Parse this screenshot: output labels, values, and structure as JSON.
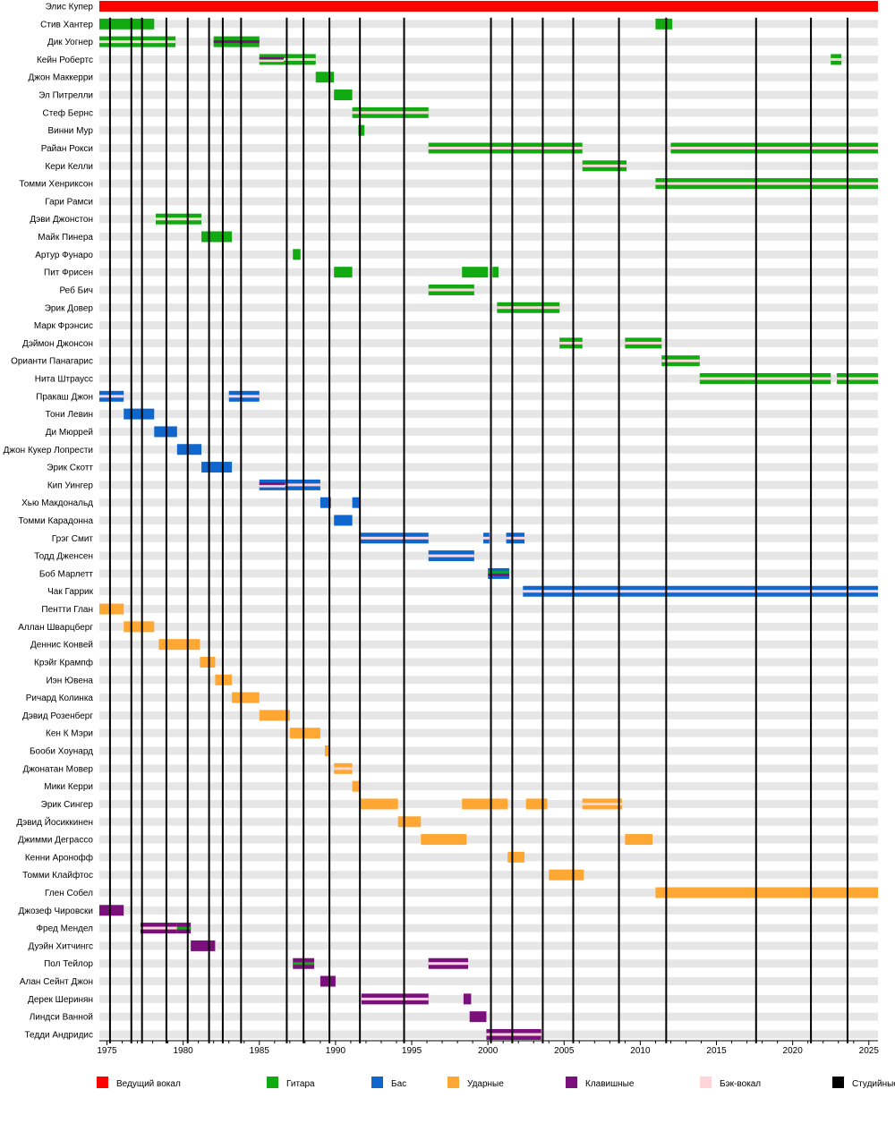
{
  "chart_data": {
    "type": "timeline",
    "title": "",
    "x_range": [
      1974.5,
      2025.6
    ],
    "x_ticks": [
      1975,
      1980,
      1985,
      1990,
      1995,
      2000,
      2005,
      2010,
      2015,
      2020,
      2025
    ],
    "colors": {
      "vocals": "#ff0000",
      "guitar": "#11aa11",
      "bass": "#0f66cc",
      "drums": "#ffa733",
      "keys": "#7b0f7b",
      "backing": "#ffd5dc",
      "studio": "#000000",
      "row_band": "#e6e6e6"
    },
    "albums": [
      1975.2,
      1976.6,
      1977.3,
      1978.9,
      1980.3,
      1981.7,
      1982.6,
      1983.8,
      1986.8,
      1987.9,
      1989.6,
      1991.6,
      1994.5,
      2000.2,
      2001.6,
      2003.6,
      2005.6,
      2008.6,
      2011.7,
      2017.6,
      2021.2,
      2023.6
    ],
    "members": [
      {
        "name": "Элис Купер",
        "spans": [
          {
            "s": 1974.5,
            "e": 2025.6,
            "r": [
              "vocals"
            ]
          }
        ]
      },
      {
        "name": "Стив Хантер",
        "spans": [
          {
            "s": 1974.5,
            "e": 1978.1,
            "r": [
              "guitar"
            ]
          },
          {
            "s": 2011.0,
            "e": 2012.1,
            "r": [
              "guitar"
            ]
          }
        ]
      },
      {
        "name": "Дик Уогнер",
        "spans": [
          {
            "s": 1974.5,
            "e": 1979.5,
            "r": [
              "guitar",
              "backing"
            ]
          },
          {
            "s": 1982.0,
            "e": 1985.0,
            "r": [
              "guitar",
              "keys"
            ]
          }
        ]
      },
      {
        "name": "Кейн Робертс",
        "spans": [
          {
            "s": 1985.0,
            "e": 1986.6,
            "r": [
              "guitar",
              "keys",
              "backing"
            ]
          },
          {
            "s": 1986.6,
            "e": 1988.7,
            "r": [
              "guitar",
              "backing"
            ]
          },
          {
            "s": 2022.5,
            "e": 2023.2,
            "r": [
              "guitar",
              "backing"
            ]
          }
        ]
      },
      {
        "name": "Джон Маккерри",
        "spans": [
          {
            "s": 1988.7,
            "e": 1989.9,
            "r": [
              "guitar"
            ]
          }
        ]
      },
      {
        "name": "Эл Питрелли",
        "spans": [
          {
            "s": 1989.9,
            "e": 1991.1,
            "r": [
              "guitar"
            ]
          }
        ]
      },
      {
        "name": "Стеф Бернс",
        "spans": [
          {
            "s": 1991.1,
            "e": 1996.1,
            "r": [
              "guitar",
              "backing"
            ]
          }
        ]
      },
      {
        "name": "Винни Мур",
        "spans": [
          {
            "s": 1991.5,
            "e": 1991.9,
            "r": [
              "guitar"
            ]
          }
        ]
      },
      {
        "name": "Райан Рокси",
        "spans": [
          {
            "s": 1996.1,
            "e": 2006.2,
            "r": [
              "guitar",
              "backing"
            ]
          },
          {
            "s": 2012.0,
            "e": 2025.6,
            "r": [
              "guitar",
              "backing"
            ]
          }
        ]
      },
      {
        "name": "Кери Келли",
        "spans": [
          {
            "s": 2006.2,
            "e": 2009.1,
            "r": [
              "guitar",
              "backing"
            ]
          }
        ]
      },
      {
        "name": "Томми Хенриксон",
        "spans": [
          {
            "s": 2011.0,
            "e": 2025.6,
            "r": [
              "guitar",
              "backing"
            ]
          }
        ]
      },
      {
        "name": "Гари Рамси",
        "spans": []
      },
      {
        "name": "Дэви Джонстон",
        "spans": [
          {
            "s": 1978.2,
            "e": 1981.2,
            "r": [
              "guitar",
              "backing"
            ]
          }
        ]
      },
      {
        "name": "Майк Пинера",
        "spans": [
          {
            "s": 1981.2,
            "e": 1983.2,
            "r": [
              "guitar"
            ]
          }
        ]
      },
      {
        "name": "Артур Фунаро",
        "spans": [
          {
            "s": 1987.2,
            "e": 1987.7,
            "r": [
              "guitar"
            ]
          }
        ]
      },
      {
        "name": "Пит Фрисен",
        "spans": [
          {
            "s": 1989.9,
            "e": 1991.1,
            "r": [
              "guitar"
            ]
          },
          {
            "s": 1998.3,
            "e": 2000.0,
            "r": [
              "guitar"
            ]
          },
          {
            "s": 2000.3,
            "e": 2000.7,
            "r": [
              "guitar"
            ]
          }
        ]
      },
      {
        "name": "Реб Бич",
        "spans": [
          {
            "s": 1996.1,
            "e": 1999.1,
            "r": [
              "guitar",
              "backing"
            ]
          }
        ]
      },
      {
        "name": "Эрик Довер",
        "spans": [
          {
            "s": 2000.6,
            "e": 2004.7,
            "r": [
              "guitar",
              "backing"
            ]
          }
        ]
      },
      {
        "name": "Марк Фрэнсис",
        "spans": []
      },
      {
        "name": "Дэймон Джонсон",
        "spans": [
          {
            "s": 2004.7,
            "e": 2006.2,
            "r": [
              "guitar",
              "backing"
            ]
          },
          {
            "s": 2009.0,
            "e": 2011.4,
            "r": [
              "guitar",
              "backing"
            ]
          }
        ]
      },
      {
        "name": "Орианти Панагарис",
        "spans": [
          {
            "s": 2011.4,
            "e": 2013.9,
            "r": [
              "guitar",
              "backing"
            ]
          }
        ]
      },
      {
        "name": "Нита Штраусс",
        "spans": [
          {
            "s": 2013.9,
            "e": 2022.5,
            "r": [
              "guitar",
              "backing"
            ]
          },
          {
            "s": 2022.9,
            "e": 2025.6,
            "r": [
              "guitar",
              "backing"
            ]
          }
        ]
      },
      {
        "name": "Пракаш Джон",
        "spans": [
          {
            "s": 1974.5,
            "e": 1976.1,
            "r": [
              "bass",
              "backing"
            ]
          },
          {
            "s": 1983.0,
            "e": 1985.0,
            "r": [
              "bass",
              "backing"
            ]
          }
        ]
      },
      {
        "name": "Тони Левин",
        "spans": [
          {
            "s": 1976.1,
            "e": 1978.1,
            "r": [
              "bass"
            ]
          }
        ]
      },
      {
        "name": "Ди Мюррей",
        "spans": [
          {
            "s": 1978.1,
            "e": 1979.6,
            "r": [
              "bass"
            ]
          }
        ]
      },
      {
        "name": "Джон Кукер Лопрести",
        "spans": [
          {
            "s": 1979.6,
            "e": 1981.2,
            "r": [
              "bass"
            ]
          }
        ]
      },
      {
        "name": "Эрик Скотт",
        "spans": [
          {
            "s": 1981.2,
            "e": 1983.2,
            "r": [
              "bass"
            ]
          }
        ]
      },
      {
        "name": "Кип Уингер",
        "spans": [
          {
            "s": 1985.0,
            "e": 1986.7,
            "r": [
              "bass",
              "keys",
              "backing"
            ]
          },
          {
            "s": 1986.7,
            "e": 1989.0,
            "r": [
              "bass",
              "backing"
            ]
          }
        ]
      },
      {
        "name": "Хью Макдональд",
        "spans": [
          {
            "s": 1989.0,
            "e": 1989.7,
            "r": [
              "bass"
            ]
          },
          {
            "s": 1991.1,
            "e": 1991.6,
            "r": [
              "bass"
            ]
          }
        ]
      },
      {
        "name": "Томми Карадонна",
        "spans": [
          {
            "s": 1989.9,
            "e": 1991.1,
            "r": [
              "bass"
            ]
          }
        ]
      },
      {
        "name": "Грэг Смит",
        "spans": [
          {
            "s": 1991.6,
            "e": 1996.1,
            "r": [
              "bass",
              "backing"
            ]
          },
          {
            "s": 1999.7,
            "e": 2000.1,
            "r": [
              "bass",
              "backing"
            ]
          },
          {
            "s": 2001.2,
            "e": 2002.4,
            "r": [
              "bass",
              "backing"
            ]
          }
        ]
      },
      {
        "name": "Тодд Дженсен",
        "spans": [
          {
            "s": 1996.1,
            "e": 1999.1,
            "r": [
              "bass",
              "backing"
            ]
          }
        ]
      },
      {
        "name": "Боб Марлетт",
        "spans": [
          {
            "s": 2000.0,
            "e": 2001.4,
            "r": [
              "bass",
              "guitar",
              "keys"
            ]
          }
        ]
      },
      {
        "name": "Чак Гаррик",
        "spans": [
          {
            "s": 2002.3,
            "e": 2025.6,
            "r": [
              "bass",
              "backing"
            ]
          }
        ]
      },
      {
        "name": "Пентти Глан",
        "spans": [
          {
            "s": 1974.5,
            "e": 1976.1,
            "r": [
              "drums"
            ]
          }
        ]
      },
      {
        "name": "Аллан Шварцберг",
        "spans": [
          {
            "s": 1976.1,
            "e": 1978.1,
            "r": [
              "drums"
            ]
          }
        ]
      },
      {
        "name": "Деннис Конвей",
        "spans": [
          {
            "s": 1978.4,
            "e": 1981.1,
            "r": [
              "drums"
            ]
          }
        ]
      },
      {
        "name": "Крэйг Крампф",
        "spans": [
          {
            "s": 1981.1,
            "e": 1982.1,
            "r": [
              "drums"
            ]
          }
        ]
      },
      {
        "name": "Иэн Ювена",
        "spans": [
          {
            "s": 1982.1,
            "e": 1983.2,
            "r": [
              "drums"
            ]
          }
        ]
      },
      {
        "name": "Ричард Колинка",
        "spans": [
          {
            "s": 1983.2,
            "e": 1985.0,
            "r": [
              "drums"
            ]
          }
        ]
      },
      {
        "name": "Дэвид Розенберг",
        "spans": [
          {
            "s": 1985.0,
            "e": 1987.0,
            "r": [
              "drums"
            ]
          }
        ]
      },
      {
        "name": "Кен К Мэри",
        "spans": [
          {
            "s": 1987.0,
            "e": 1989.0,
            "r": [
              "drums"
            ]
          }
        ]
      },
      {
        "name": "Бооби Хоунард",
        "spans": [
          {
            "s": 1989.3,
            "e": 1989.6,
            "r": [
              "drums"
            ]
          }
        ]
      },
      {
        "name": "Джонатан Мовер",
        "spans": [
          {
            "s": 1989.9,
            "e": 1991.1,
            "r": [
              "drums",
              "backing"
            ]
          }
        ]
      },
      {
        "name": "Мики Керри",
        "spans": [
          {
            "s": 1991.1,
            "e": 1991.6,
            "r": [
              "drums"
            ]
          }
        ]
      },
      {
        "name": "Эрик Сингер",
        "spans": [
          {
            "s": 1991.6,
            "e": 1994.1,
            "r": [
              "drums"
            ]
          },
          {
            "s": 1998.3,
            "e": 2001.3,
            "r": [
              "drums"
            ]
          },
          {
            "s": 2002.5,
            "e": 2003.9,
            "r": [
              "drums"
            ]
          },
          {
            "s": 2006.2,
            "e": 2008.8,
            "r": [
              "drums",
              "backing"
            ]
          }
        ]
      },
      {
        "name": "Дэвид Йосиккинен",
        "spans": [
          {
            "s": 1994.1,
            "e": 1995.6,
            "r": [
              "drums"
            ]
          }
        ]
      },
      {
        "name": "Джимми Деграссо",
        "spans": [
          {
            "s": 1995.6,
            "e": 1998.6,
            "r": [
              "drums"
            ]
          },
          {
            "s": 2009.0,
            "e": 2010.8,
            "r": [
              "drums"
            ]
          }
        ]
      },
      {
        "name": "Кенни Аронофф",
        "spans": [
          {
            "s": 2001.3,
            "e": 2002.4,
            "r": [
              "drums"
            ]
          }
        ]
      },
      {
        "name": "Томми Клайфтос",
        "spans": [
          {
            "s": 2004.0,
            "e": 2006.3,
            "r": [
              "drums"
            ]
          }
        ]
      },
      {
        "name": "Глен Собел",
        "spans": [
          {
            "s": 2011.0,
            "e": 2025.6,
            "r": [
              "drums"
            ]
          }
        ]
      },
      {
        "name": "Джозеф Чировски",
        "spans": [
          {
            "s": 1974.5,
            "e": 1976.1,
            "r": [
              "keys"
            ]
          }
        ]
      },
      {
        "name": "Фред Мендел",
        "spans": [
          {
            "s": 1977.2,
            "e": 1979.6,
            "r": [
              "keys",
              "backing"
            ]
          },
          {
            "s": 1979.6,
            "e": 1980.5,
            "r": [
              "keys",
              "guitar"
            ]
          }
        ]
      },
      {
        "name": "Дуэйн Хитчингс",
        "spans": [
          {
            "s": 1980.5,
            "e": 1982.1,
            "r": [
              "keys"
            ]
          }
        ]
      },
      {
        "name": "Пол Тейлор",
        "spans": [
          {
            "s": 1987.2,
            "e": 1988.6,
            "r": [
              "keys",
              "guitar"
            ]
          },
          {
            "s": 1996.1,
            "e": 1998.7,
            "r": [
              "keys",
              "backing"
            ]
          }
        ]
      },
      {
        "name": "Алан Сейнт Джон",
        "spans": [
          {
            "s": 1989.0,
            "e": 1990.0,
            "r": [
              "keys"
            ]
          }
        ]
      },
      {
        "name": "Дерек Шеринян",
        "spans": [
          {
            "s": 1991.7,
            "e": 1996.1,
            "r": [
              "keys",
              "backing"
            ]
          },
          {
            "s": 1998.4,
            "e": 1998.9,
            "r": [
              "keys"
            ]
          }
        ]
      },
      {
        "name": "Линдси Ванной",
        "spans": [
          {
            "s": 1998.8,
            "e": 1999.9,
            "r": [
              "keys"
            ]
          }
        ]
      },
      {
        "name": "Тедди Андридис",
        "spans": [
          {
            "s": 1999.9,
            "e": 2003.5,
            "r": [
              "keys",
              "backing"
            ]
          }
        ]
      }
    ],
    "legend": [
      {
        "key": "vocals",
        "label": "Ведущий вокал"
      },
      {
        "key": "guitar",
        "label": "Гитара"
      },
      {
        "key": "bass",
        "label": "Бас"
      },
      {
        "key": "drums",
        "label": "Ударные"
      },
      {
        "key": "keys",
        "label": "Клавишные"
      },
      {
        "key": "backing",
        "label": "Бэк-вокал"
      },
      {
        "key": "studio",
        "label": "Студийные"
      }
    ]
  }
}
